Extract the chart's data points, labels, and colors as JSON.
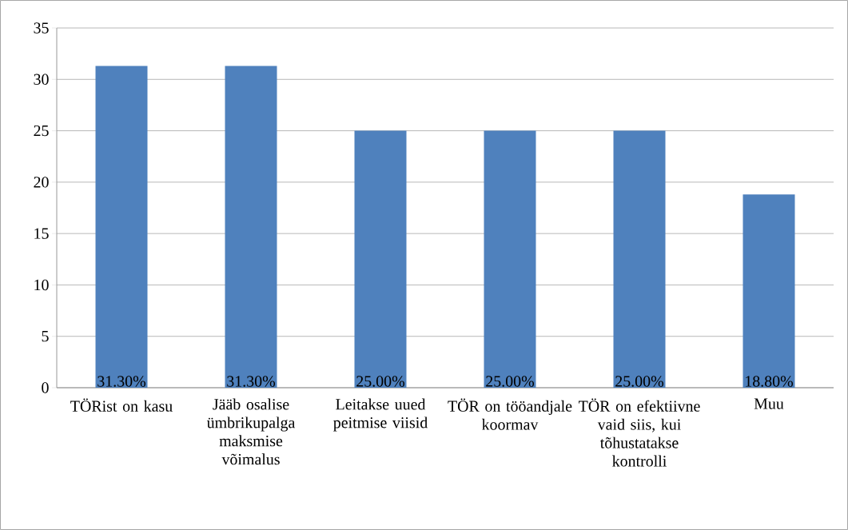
{
  "chart_data": {
    "type": "bar",
    "categories": [
      "TÖRist on kasu",
      "Jääb osalise ümbrikupalga maksmise võimalus",
      "Leitakse uued peitmise viisid",
      "TÖR on tööandjale koormav",
      "TÖR on efektiivne vaid siis, kui tõhustatakse kontrolli",
      "Muu"
    ],
    "values": [
      31.3,
      31.3,
      25,
      25,
      25,
      18.8
    ],
    "value_labels": [
      "31.30%",
      "31.30%",
      "25.00%",
      "25.00%",
      "25.00%",
      "18.80%"
    ],
    "color": "#4f81bd",
    "ylim": [
      0,
      35
    ],
    "yticks": [
      0,
      5,
      10,
      15,
      20,
      25,
      30,
      35
    ],
    "grid": "y"
  }
}
